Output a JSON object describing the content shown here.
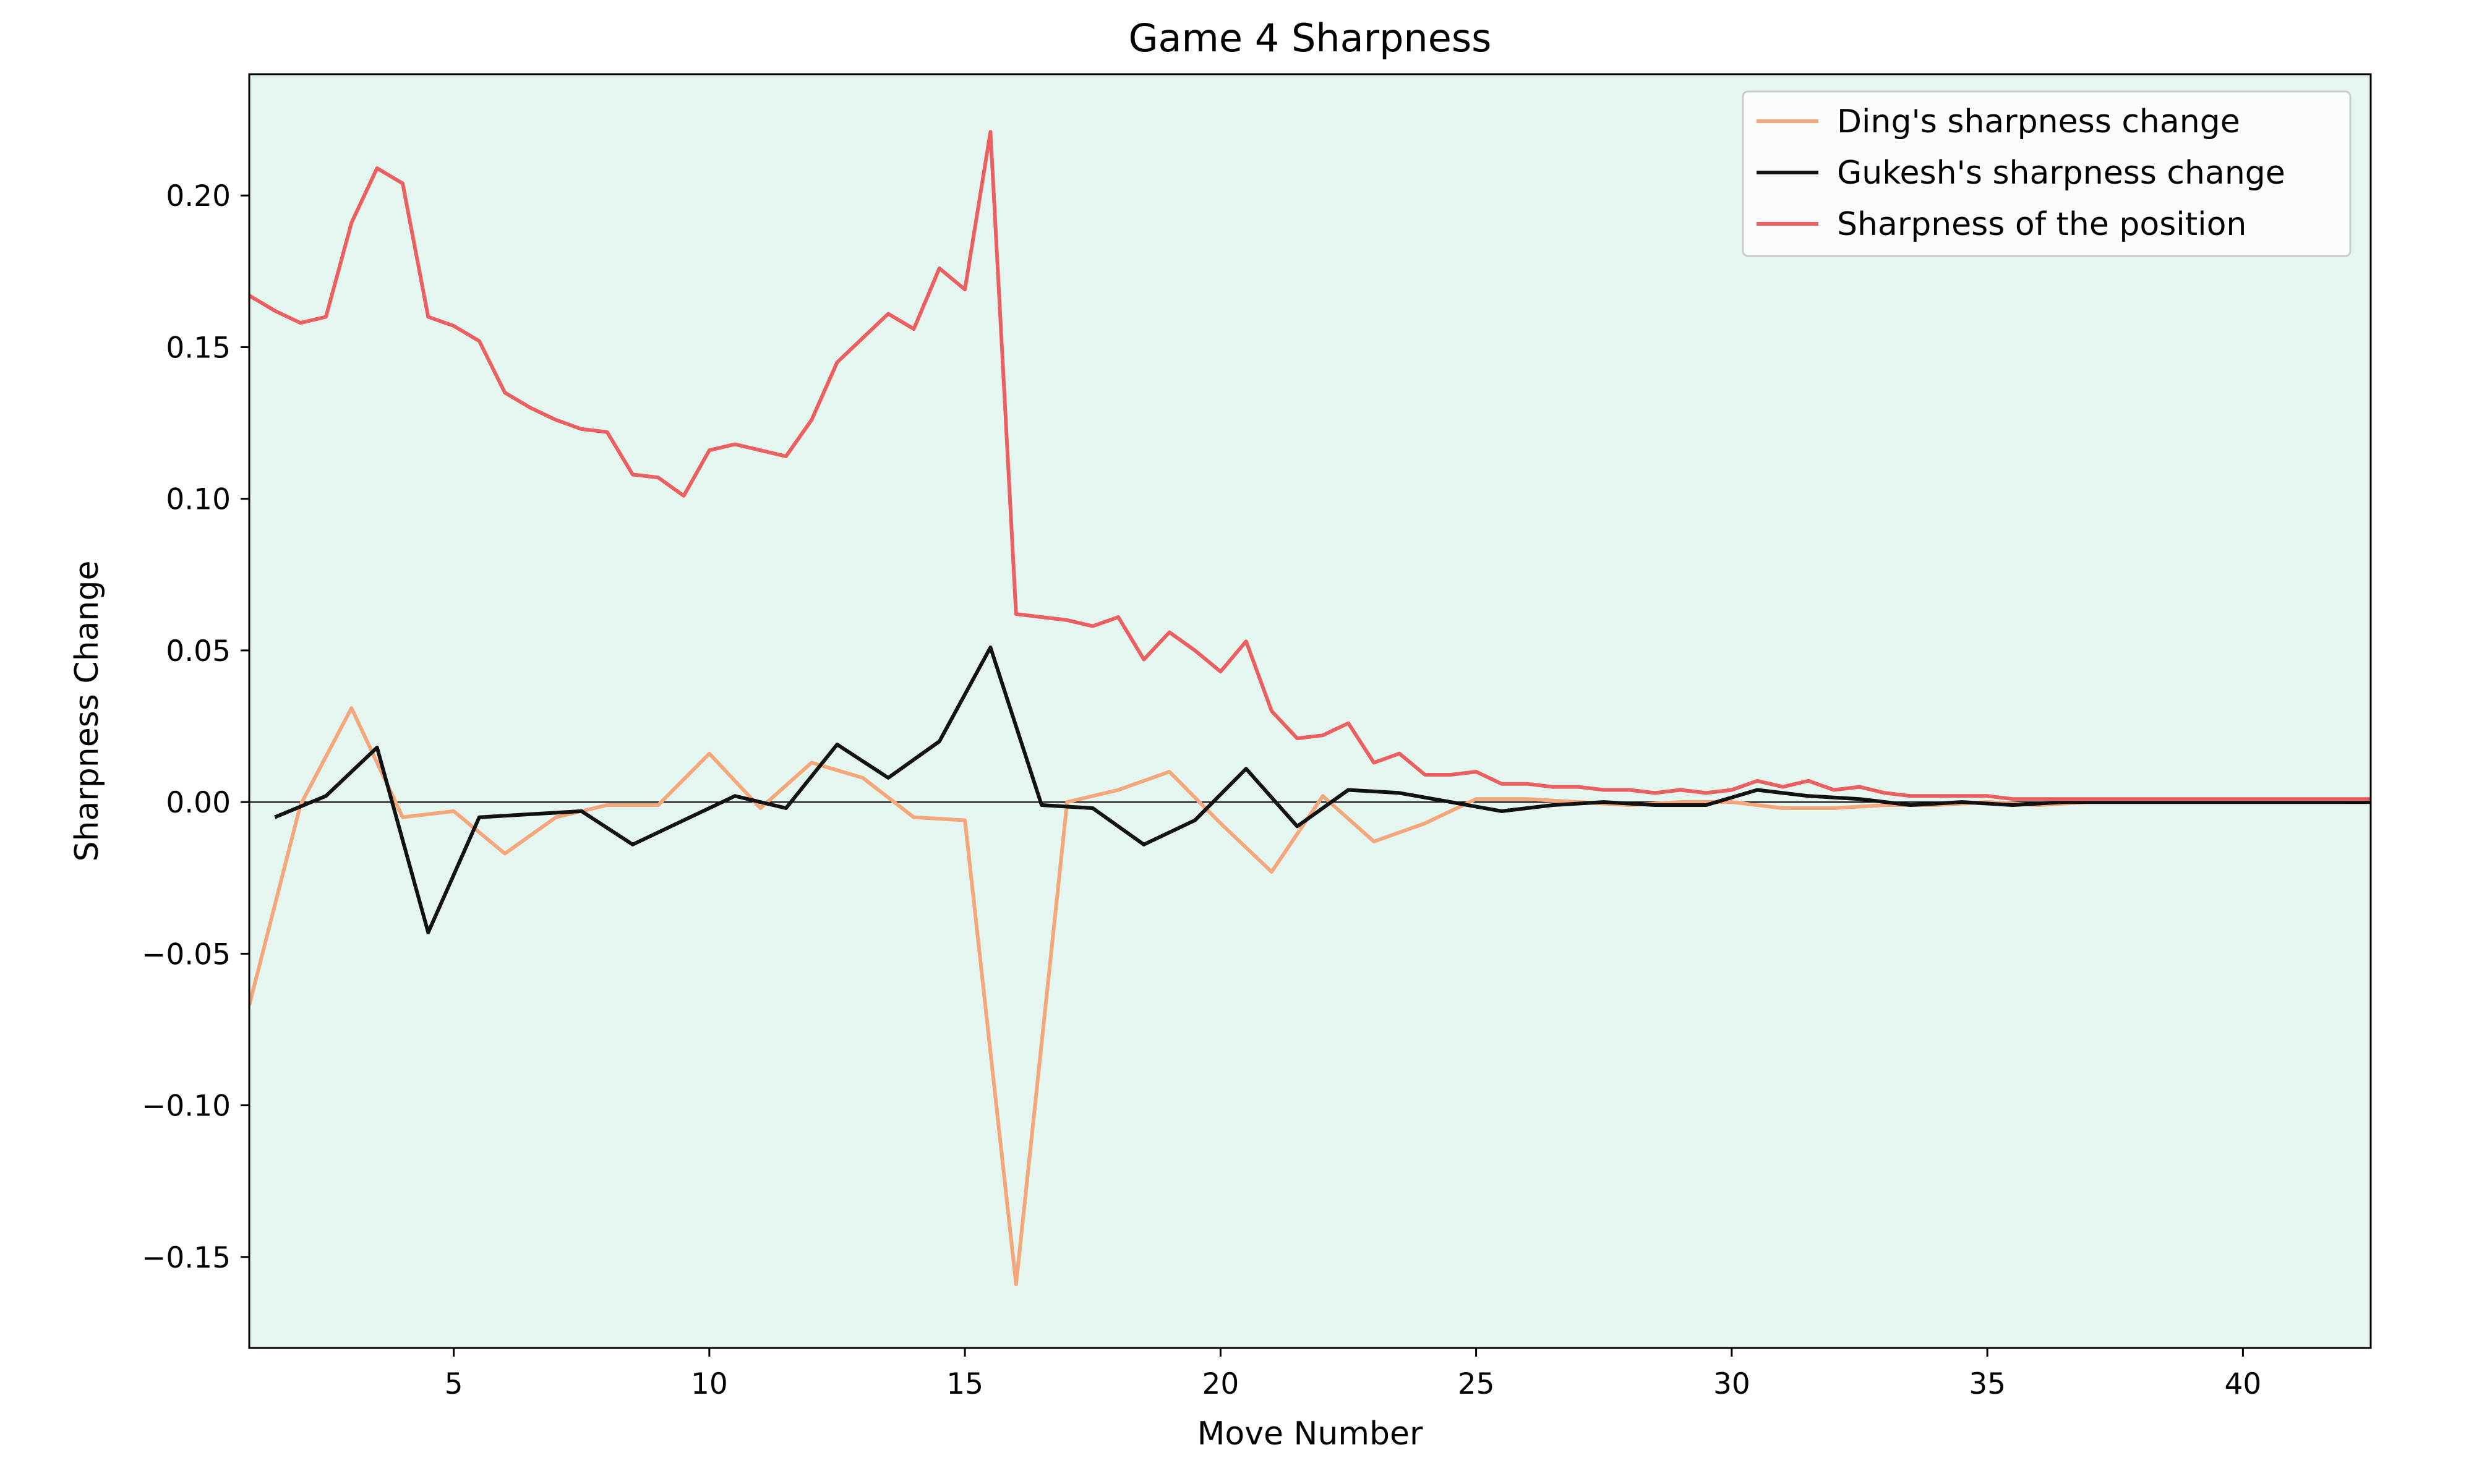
{
  "chart_data": {
    "type": "line",
    "title": "Game 4 Sharpness",
    "xlabel": "Move Number",
    "ylabel": "Sharpness Change",
    "xlim": [
      1,
      42.5
    ],
    "ylim": [
      -0.18,
      0.24
    ],
    "x_ticks": [
      5,
      10,
      15,
      20,
      25,
      30,
      35,
      40
    ],
    "y_ticks": [
      -0.15,
      -0.1,
      -0.05,
      0.0,
      0.05,
      0.1,
      0.15,
      0.2
    ],
    "y_tick_labels": [
      "−0.15",
      "−0.10",
      "−0.05",
      "0.00",
      "0.05",
      "0.10",
      "0.15",
      "0.20"
    ],
    "zero_line": true,
    "grid": false,
    "background_color": "#e5f5ef",
    "legend_position": "top-right",
    "series": [
      {
        "name": "Ding's sharpness change",
        "color": "#f4a77a",
        "x": [
          1,
          2,
          3,
          4,
          5,
          6,
          7,
          8,
          9,
          10,
          11,
          12,
          13,
          14,
          15,
          16,
          17,
          18,
          19,
          20,
          21,
          22,
          23,
          24,
          25,
          26,
          27,
          28,
          29,
          30,
          31,
          32,
          33,
          34,
          35,
          36,
          37,
          38,
          39,
          40,
          41,
          42
        ],
        "y": [
          -0.067,
          -0.001,
          0.031,
          -0.005,
          -0.003,
          -0.017,
          -0.005,
          -0.001,
          -0.001,
          0.016,
          -0.002,
          0.013,
          0.008,
          -0.005,
          -0.006,
          -0.159,
          0.0,
          0.004,
          0.01,
          -0.007,
          -0.023,
          0.002,
          -0.013,
          -0.007,
          0.001,
          0.001,
          0.0,
          -0.001,
          0.0,
          0.0,
          -0.002,
          -0.002,
          -0.001,
          -0.001,
          0.0,
          -0.001,
          0.0,
          0.0,
          0.0,
          0.0,
          0.0,
          0.0
        ]
      },
      {
        "name": "Gukesh's sharpness change",
        "color": "#111111",
        "x": [
          1.5,
          2.5,
          3.5,
          4.5,
          5.5,
          6.5,
          7.5,
          8.5,
          9.5,
          10.5,
          11.5,
          12.5,
          13.5,
          14.5,
          15.5,
          16.5,
          17.5,
          18.5,
          19.5,
          20.5,
          21.5,
          22.5,
          23.5,
          24.5,
          25.5,
          26.5,
          27.5,
          28.5,
          29.5,
          30.5,
          31.5,
          32.5,
          33.5,
          34.5,
          35.5,
          36.5,
          37.5,
          38.5,
          39.5,
          40.5,
          41.5,
          42.5
        ],
        "y": [
          -0.005,
          0.002,
          0.018,
          -0.043,
          -0.005,
          -0.004,
          -0.003,
          -0.014,
          -0.006,
          0.002,
          -0.002,
          0.019,
          0.008,
          0.02,
          0.051,
          -0.001,
          -0.002,
          -0.014,
          -0.006,
          0.011,
          -0.008,
          0.004,
          0.003,
          0.0,
          -0.003,
          -0.001,
          0.0,
          -0.001,
          -0.001,
          0.004,
          0.002,
          0.001,
          -0.001,
          0.0,
          -0.001,
          0.0,
          0.0,
          0.0,
          0.0,
          0.0,
          0.0,
          0.0
        ]
      },
      {
        "name": "Sharpness of the position",
        "color": "#ec5f60",
        "x": [
          1,
          1.5,
          2,
          2.5,
          3,
          3.5,
          4,
          4.5,
          5,
          5.5,
          6,
          6.5,
          7,
          7.5,
          8,
          8.5,
          9,
          9.5,
          10,
          10.5,
          11,
          11.5,
          12,
          12.5,
          13,
          13.5,
          14,
          14.5,
          15,
          15.5,
          16,
          16.5,
          17,
          17.5,
          18,
          18.5,
          19,
          19.5,
          20,
          20.5,
          21,
          21.5,
          22,
          22.5,
          23,
          23.5,
          24,
          24.5,
          25,
          25.5,
          26,
          26.5,
          27,
          27.5,
          28,
          28.5,
          29,
          29.5,
          30,
          30.5,
          31,
          31.5,
          32,
          32.5,
          33,
          33.5,
          34,
          34.5,
          35,
          35.5,
          36,
          36.5,
          37,
          37.5,
          38,
          38.5,
          39,
          39.5,
          40,
          40.5,
          41,
          41.5,
          42,
          42.5
        ],
        "y": [
          0.167,
          0.162,
          0.158,
          0.16,
          0.191,
          0.209,
          0.204,
          0.16,
          0.157,
          0.152,
          0.135,
          0.13,
          0.126,
          0.123,
          0.122,
          0.108,
          0.107,
          0.101,
          0.116,
          0.118,
          0.116,
          0.114,
          0.126,
          0.145,
          0.153,
          0.161,
          0.156,
          0.176,
          0.169,
          0.221,
          0.062,
          0.061,
          0.06,
          0.058,
          0.061,
          0.047,
          0.056,
          0.05,
          0.043,
          0.053,
          0.03,
          0.021,
          0.022,
          0.026,
          0.013,
          0.016,
          0.009,
          0.009,
          0.01,
          0.006,
          0.006,
          0.005,
          0.005,
          0.004,
          0.004,
          0.003,
          0.004,
          0.003,
          0.004,
          0.007,
          0.005,
          0.007,
          0.004,
          0.005,
          0.003,
          0.002,
          0.002,
          0.002,
          0.002,
          0.001,
          0.001,
          0.001,
          0.001,
          0.001,
          0.001,
          0.001,
          0.001,
          0.001,
          0.001,
          0.001,
          0.001,
          0.001,
          0.001,
          0.001
        ]
      }
    ]
  }
}
